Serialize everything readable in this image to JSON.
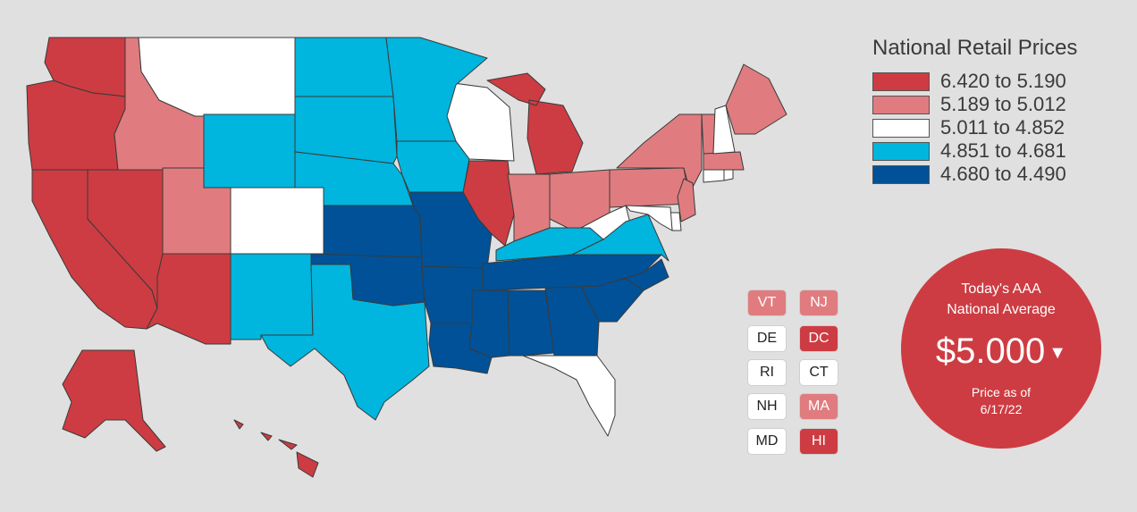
{
  "legend": {
    "title": "National Retail Prices",
    "ranges": [
      {
        "label": "6.420 to 5.190",
        "color": "#cd3c42"
      },
      {
        "label": "5.189 to 5.012",
        "color": "#e07c7f"
      },
      {
        "label": "5.011 to 4.852",
        "color": "#ffffff"
      },
      {
        "label": "4.851 to 4.681",
        "color": "#00b5de"
      },
      {
        "label": "4.680 to 4.490",
        "color": "#005197"
      }
    ]
  },
  "states": {
    "WA": 0,
    "OR": 0,
    "CA": 0,
    "NV": 0,
    "AZ": 0,
    "IL": 0,
    "MI": 0,
    "AK": 0,
    "HI": 0,
    "ID": 1,
    "UT": 1,
    "IN": 1,
    "OH": 1,
    "PA": 1,
    "NY": 1,
    "ME": 1,
    "VT": 1,
    "NJ": 1,
    "MA": 1,
    "MT": 2,
    "CO": 2,
    "WI": 2,
    "WV": 2,
    "FL": 2,
    "NH": 2,
    "DE": 2,
    "RI": 2,
    "CT": 2,
    "MD": 2,
    "WY": 3,
    "ND": 3,
    "SD": 3,
    "NE": 3,
    "MN": 3,
    "IA": 3,
    "NM": 3,
    "TX": 3,
    "KY": 3,
    "VA": 3,
    "KS": 4,
    "OK": 4,
    "MO": 4,
    "AR": 4,
    "LA": 4,
    "MS": 4,
    "AL": 4,
    "GA": 4,
    "SC": 4,
    "NC": 4,
    "TN": 4
  },
  "small_states": [
    {
      "label": "VT",
      "tier": 1
    },
    {
      "label": "NJ",
      "tier": 1
    },
    {
      "label": "DE",
      "tier": 2
    },
    {
      "label": "DC",
      "tier": 0
    },
    {
      "label": "RI",
      "tier": 2
    },
    {
      "label": "CT",
      "tier": 2
    },
    {
      "label": "NH",
      "tier": 2
    },
    {
      "label": "MA",
      "tier": 1
    },
    {
      "label": "MD",
      "tier": 2
    },
    {
      "label": "HI",
      "tier": 0
    }
  ],
  "national_average": {
    "heading_line1": "Today's AAA",
    "heading_line2": "National Average",
    "value": "$5.000",
    "caret": "▼",
    "asof_line1": "Price as of",
    "asof_line2": "6/17/22"
  }
}
